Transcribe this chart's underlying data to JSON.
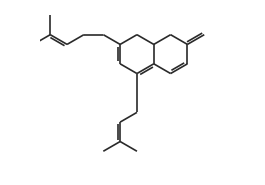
{
  "bg_color": "#ffffff",
  "line_color": "#2a2a2a",
  "line_width": 1.2,
  "dbo": 0.013,
  "figsize": [
    2.65,
    1.85
  ],
  "dpi": 100,
  "blen": 0.105
}
